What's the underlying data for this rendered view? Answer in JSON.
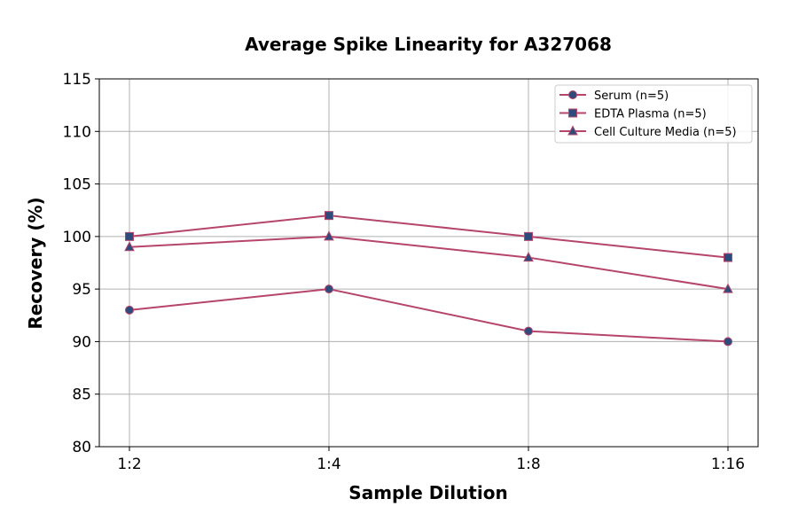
{
  "chart_data": {
    "type": "line",
    "title": "Average Spike Linearity for A327068",
    "xlabel": "Sample Dilution",
    "ylabel": "Recovery (%)",
    "categories": [
      "1:2",
      "1:4",
      "1:8",
      "1:16"
    ],
    "ylim": [
      80,
      115
    ],
    "yticks": [
      80,
      85,
      90,
      95,
      100,
      105,
      110,
      115
    ],
    "grid": true,
    "legend_position": "top-right",
    "line_color": "#b5456b",
    "marker_color": "#2f4b7c",
    "series": [
      {
        "name": "Serum (n=5)",
        "marker": "circle",
        "values": [
          93,
          95,
          91,
          90
        ]
      },
      {
        "name": "EDTA Plasma (n=5)",
        "marker": "square",
        "values": [
          100,
          102,
          100,
          98
        ]
      },
      {
        "name": "Cell Culture Media (n=5)",
        "marker": "triangle",
        "values": [
          99,
          100,
          98,
          95
        ]
      }
    ]
  }
}
